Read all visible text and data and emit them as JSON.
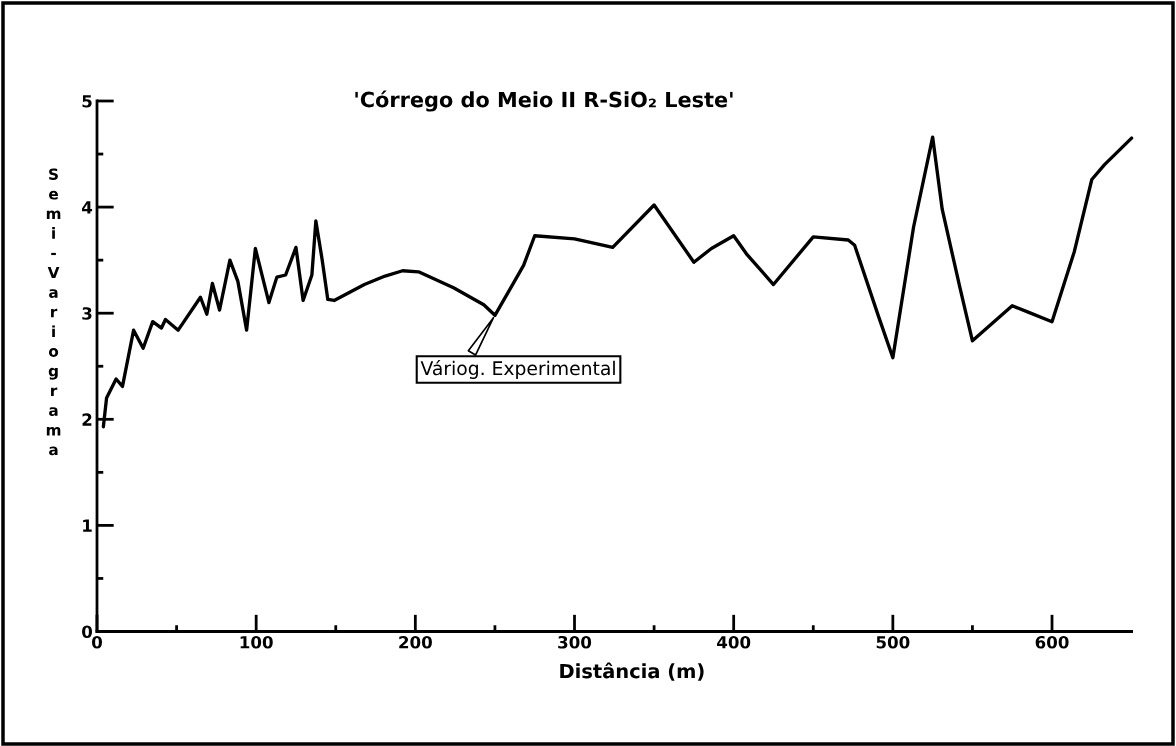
{
  "chart_data": {
    "type": "line",
    "title": "'Córrego do Meio II R-SiO₂ Leste'",
    "xlabel": "Distância (m)",
    "ylabel": "Semi-Variograma",
    "x": [
      4,
      6,
      12,
      16,
      23,
      29,
      35,
      40.5,
      43,
      51,
      65,
      69,
      72.5,
      77,
      83.5,
      88.5,
      94,
      99.5,
      108,
      113,
      118.5,
      125,
      129.5,
      135,
      137.5,
      141.5,
      145,
      149,
      168,
      181,
      192,
      202,
      224,
      243,
      250,
      268,
      275,
      300,
      324,
      350,
      375,
      386,
      400,
      408,
      425,
      450,
      472,
      476,
      491,
      500,
      513,
      525,
      531,
      542,
      550,
      575,
      585,
      600,
      614,
      625,
      633,
      650
    ],
    "series": [
      {
        "color": "#000000",
        "values": [
          1.93,
          2.2,
          2.38,
          2.31,
          2.84,
          2.67,
          2.92,
          2.86,
          2.94,
          2.84,
          3.15,
          2.99,
          3.28,
          3.03,
          3.5,
          3.3,
          2.84,
          3.61,
          3.1,
          3.34,
          3.36,
          3.62,
          3.12,
          3.36,
          3.87,
          3.5,
          3.13,
          3.12,
          3.27,
          3.35,
          3.4,
          3.39,
          3.24,
          3.08,
          2.98,
          3.45,
          3.73,
          3.7,
          3.62,
          4.02,
          3.48,
          3.61,
          3.73,
          3.56,
          3.27,
          3.72,
          3.69,
          3.64,
          2.97,
          2.58,
          3.81,
          4.66,
          3.98,
          3.25,
          2.74,
          3.07,
          3.01,
          2.92,
          3.58,
          4.26,
          4.4,
          4.65
        ]
      }
    ],
    "xlim": [
      0,
      650
    ],
    "xticks": [
      0,
      {
        "value": 50,
        "label": null
      },
      100,
      {
        "value": 150,
        "label": null
      },
      200,
      {
        "value": 250,
        "label": null
      },
      300,
      {
        "value": 350,
        "label": null
      },
      400,
      {
        "value": 450,
        "label": null
      },
      500,
      {
        "value": 550,
        "label": null
      },
      600
    ],
    "ylim": [
      0,
      5
    ],
    "yticks": [
      0,
      {
        "value": 0.5,
        "label": null
      },
      1,
      {
        "value": 1.5,
        "label": null
      },
      2,
      {
        "value": 2.5,
        "label": null
      },
      3,
      {
        "value": 3.5,
        "label": null
      },
      4,
      {
        "value": 4.5,
        "label": null
      },
      5
    ],
    "annotations": [
      {
        "text": "Váriog. Experimental",
        "x": 250,
        "y": 2.98
      }
    ],
    "grid": false,
    "marker": "none",
    "line_style": "solid"
  }
}
